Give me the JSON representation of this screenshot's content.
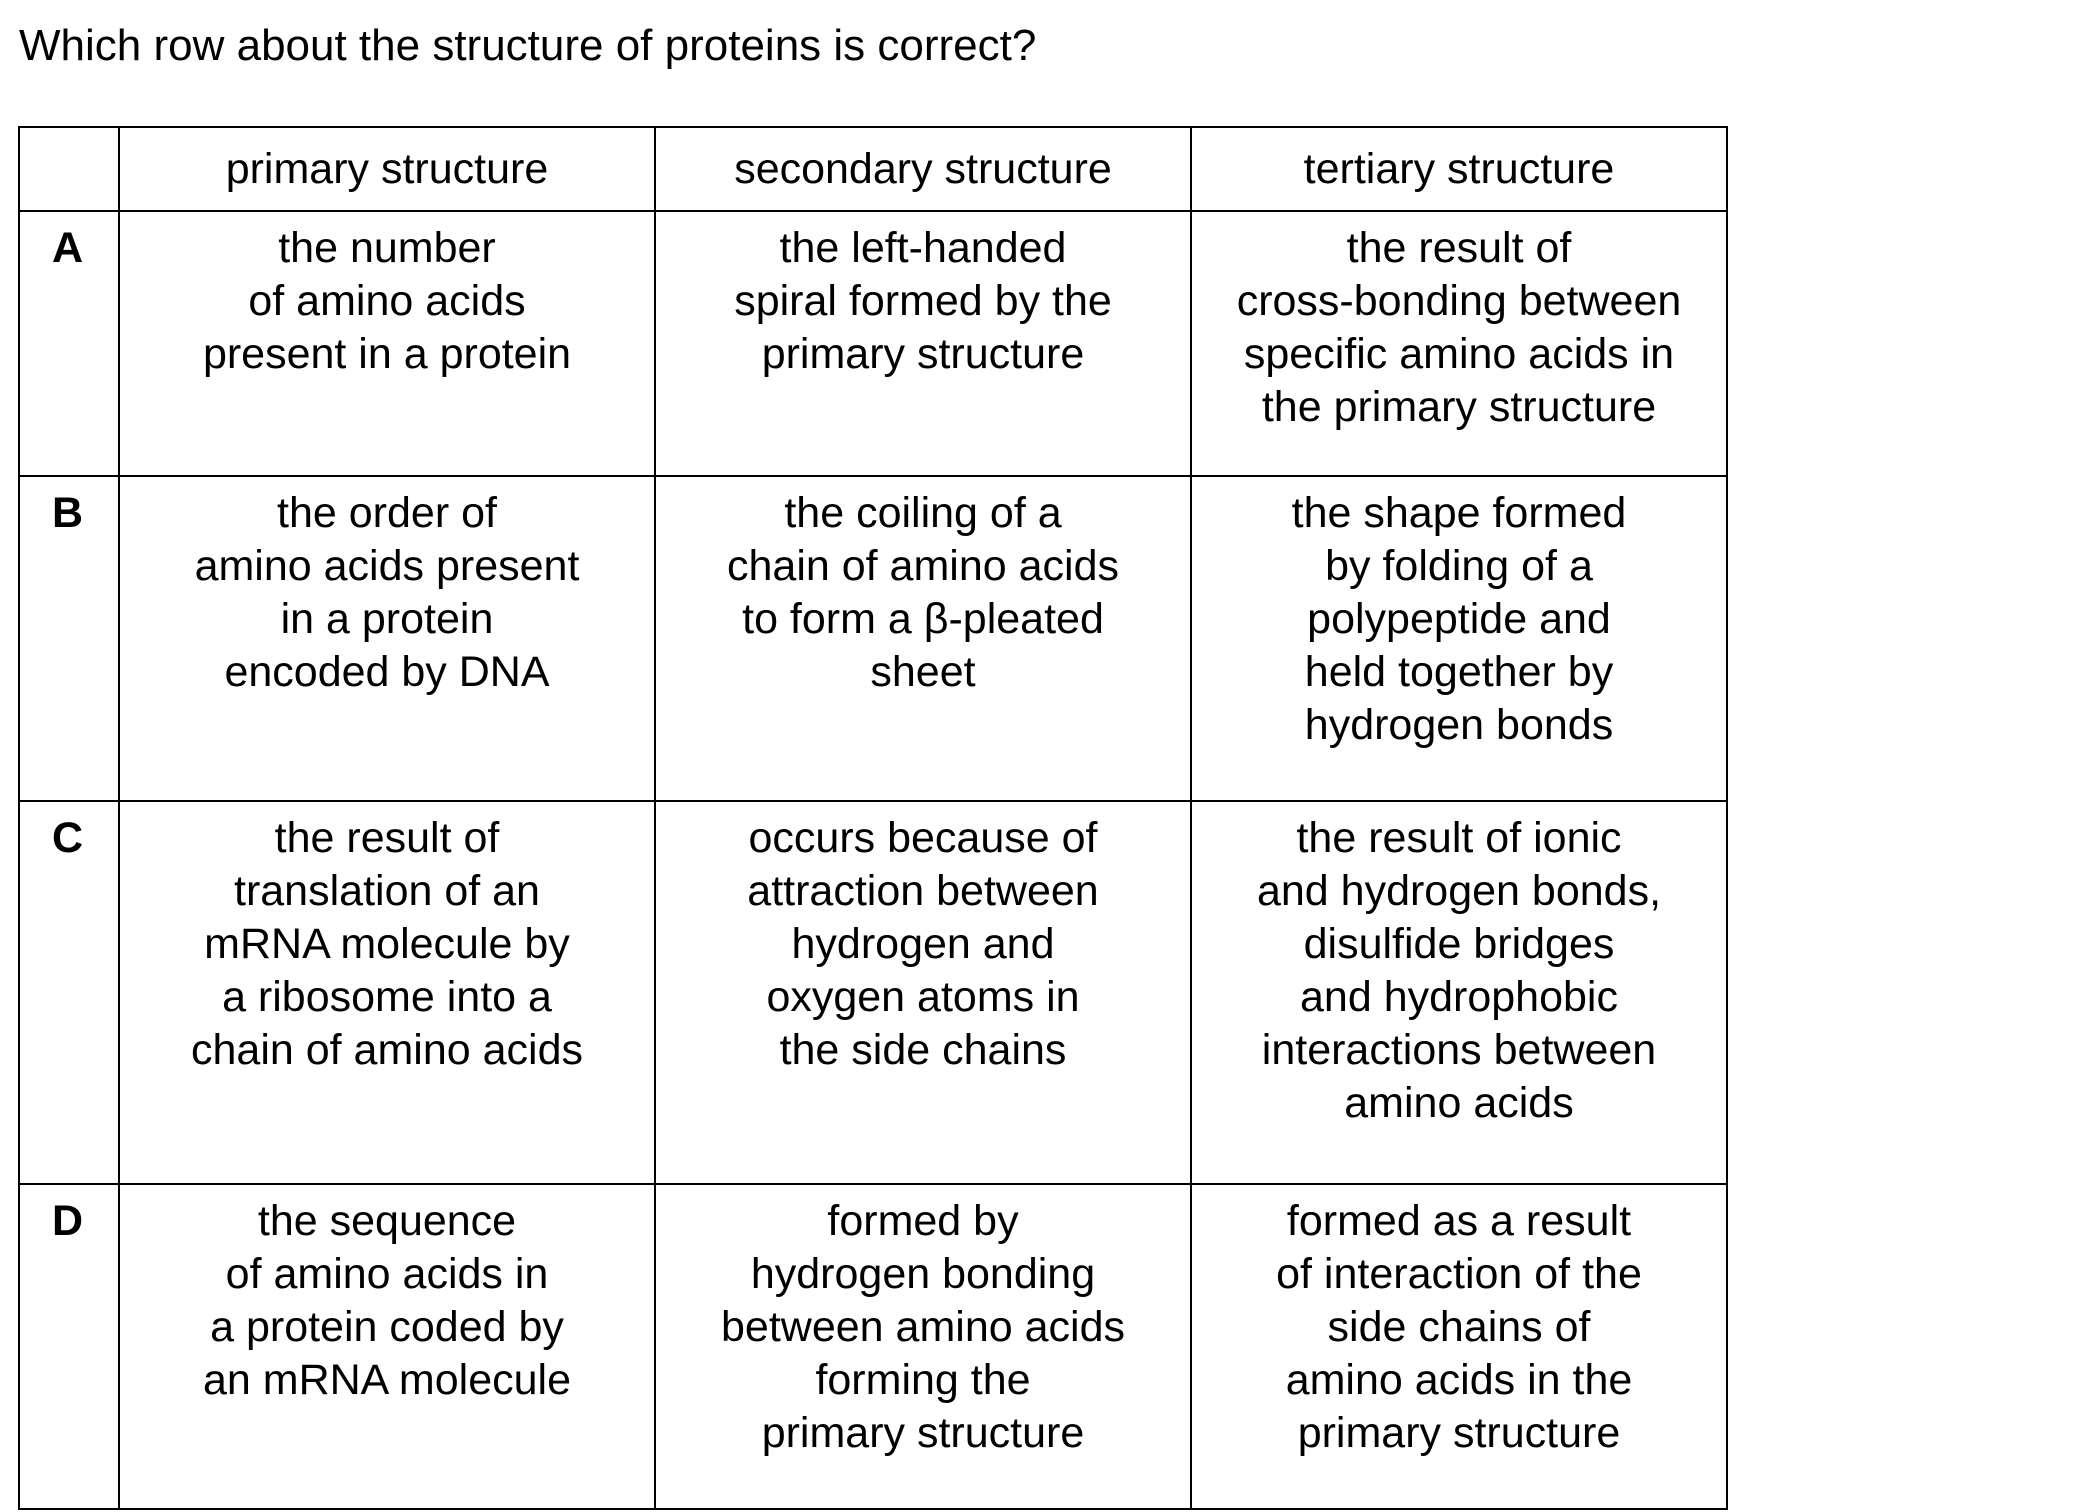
{
  "question": "Which row about the structure of proteins is correct?",
  "table": {
    "headers": [
      "",
      "primary structure",
      "secondary structure",
      "tertiary structure"
    ],
    "rows": [
      {
        "letter": "A",
        "primary": "the number\nof amino acids\npresent in a protein",
        "secondary": "the left-handed\nspiral formed by the\nprimary structure",
        "tertiary": "the result of\ncross-bonding between\nspecific amino acids in\nthe primary structure"
      },
      {
        "letter": "B",
        "primary": "the order of\namino acids present\nin a protein\nencoded by DNA",
        "secondary": "the coiling of a\nchain of amino acids\nto form a β-pleated\nsheet",
        "tertiary": "the shape formed\nby folding of a\npolypeptide and\nheld together by\nhydrogen bonds"
      },
      {
        "letter": "C",
        "primary": "the result of\ntranslation of an\nmRNA molecule by\na ribosome into a\nchain of amino acids",
        "secondary": "occurs because of\nattraction between\nhydrogen and\noxygen atoms in\nthe side chains",
        "tertiary": "the result of ionic\nand hydrogen bonds,\ndisulfide bridges\nand hydrophobic\ninteractions between\namino acids"
      },
      {
        "letter": "D",
        "primary": "the sequence\nof amino acids in\na protein coded by\nan mRNA molecule",
        "secondary": "formed by\nhydrogen bonding\nbetween amino acids\nforming the\nprimary structure",
        "tertiary": "formed as a result\nof interaction of the\nside chains of\namino acids in the\nprimary structure"
      }
    ]
  }
}
